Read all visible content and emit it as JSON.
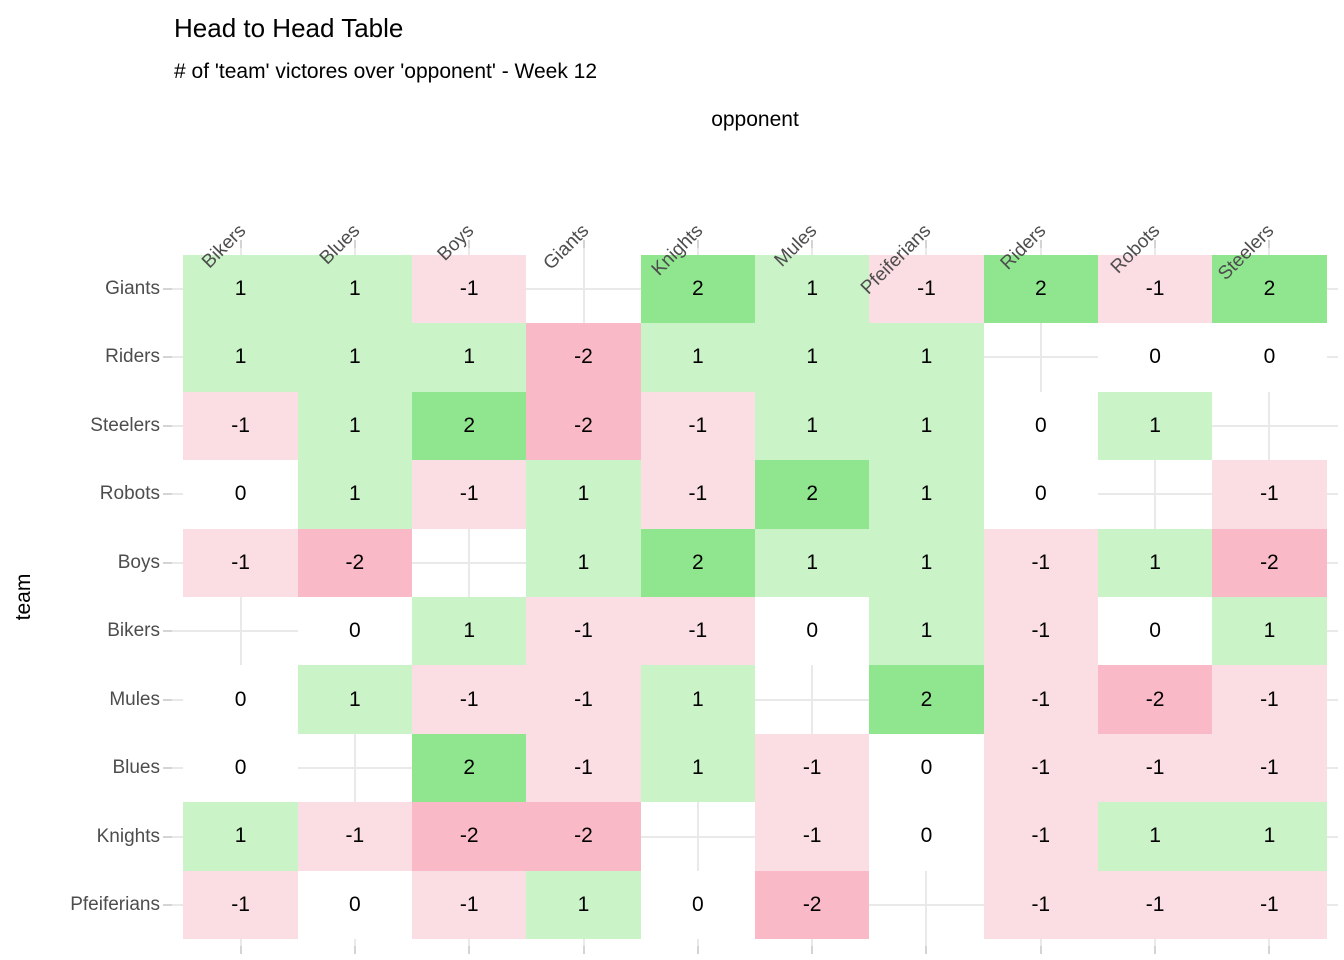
{
  "title": "Head to Head Table",
  "subtitle": "# of 'team' victores over 'opponent' - Week 12",
  "chart_data": {
    "type": "heatmap",
    "title": "Head to Head Table",
    "subtitle": "# of 'team' victores over 'opponent' - Week 12",
    "xlabel": "opponent",
    "ylabel": "team",
    "x_axis_position": "top",
    "legend": "none",
    "grid": true,
    "columns": [
      "Bikers",
      "Blues",
      "Boys",
      "Giants",
      "Knights",
      "Mules",
      "Pfeiferians",
      "Riders",
      "Robots",
      "Steelers"
    ],
    "rows": [
      "Giants",
      "Riders",
      "Steelers",
      "Robots",
      "Boys",
      "Bikers",
      "Mules",
      "Blues",
      "Knights",
      "Pfeiferians"
    ],
    "values": [
      [
        1,
        1,
        -1,
        null,
        2,
        1,
        -1,
        2,
        -1,
        2
      ],
      [
        1,
        1,
        1,
        -2,
        1,
        1,
        1,
        null,
        0,
        0
      ],
      [
        -1,
        1,
        2,
        -2,
        -1,
        1,
        1,
        0,
        1,
        null
      ],
      [
        0,
        1,
        -1,
        1,
        -1,
        2,
        1,
        0,
        null,
        -1
      ],
      [
        -1,
        -2,
        null,
        1,
        2,
        1,
        1,
        -1,
        1,
        -2
      ],
      [
        null,
        0,
        1,
        -1,
        -1,
        0,
        1,
        -1,
        0,
        1
      ],
      [
        0,
        1,
        -1,
        -1,
        1,
        null,
        2,
        -1,
        -2,
        -1
      ],
      [
        0,
        null,
        2,
        -1,
        1,
        -1,
        0,
        -1,
        -1,
        -1
      ],
      [
        1,
        -1,
        -2,
        -2,
        null,
        -1,
        0,
        -1,
        1,
        1
      ],
      [
        -1,
        0,
        -1,
        1,
        0,
        -2,
        null,
        -1,
        -1,
        -1
      ]
    ],
    "value_range": [
      -2,
      2
    ],
    "missing_cells": "diagonal team-vs-itself cells are blank",
    "fill_colors": {
      "-2": "#FAB9C6",
      "-1": "#FBDEE3",
      "0": "#FFFFFF",
      "1": "#CAF3C8",
      "2": "#8FE68F"
    }
  },
  "colors": {
    "background": "#FFFFFF",
    "cell_text": "#000000",
    "axis_label_gray": "#4D4D4D",
    "gridline": "#E9E9E9",
    "tick": "#D4D4D4"
  }
}
